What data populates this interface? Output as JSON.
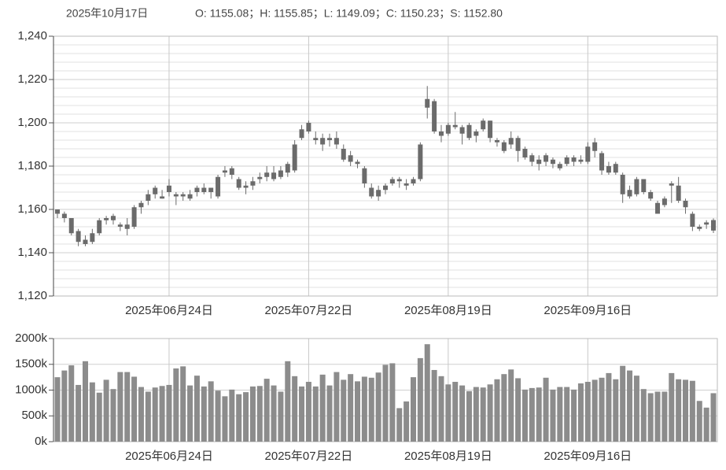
{
  "chart_data": [
    {
      "type": "candlestick",
      "date": "2025年10月17日",
      "info": "O: 1155.08；H: 1155.85；L: 1149.09；C: 1150.23；S: 1152.80",
      "color": "#6b6b6b",
      "categories": [
        null,
        null,
        null,
        null,
        null,
        null,
        null,
        null,
        null,
        null,
        null,
        null,
        null,
        null,
        null,
        null,
        "2025年06月24日",
        null,
        null,
        null,
        null,
        null,
        null,
        null,
        null,
        null,
        null,
        null,
        null,
        null,
        null,
        null,
        null,
        null,
        null,
        null,
        "2025年07月22日",
        null,
        null,
        null,
        null,
        null,
        null,
        null,
        null,
        null,
        null,
        null,
        null,
        null,
        null,
        null,
        null,
        null,
        null,
        null,
        "2025年08月19日",
        null,
        null,
        null,
        null,
        null,
        null,
        null,
        null,
        null,
        null,
        null,
        null,
        null,
        null,
        null,
        null,
        null,
        null,
        null,
        "2025年09月16日",
        null,
        null,
        null,
        null,
        null,
        null,
        null,
        null,
        null,
        null,
        null,
        null,
        null,
        null,
        null,
        null,
        null,
        null
      ],
      "open": [
        1160,
        1158,
        1156,
        1150,
        1144,
        1145,
        1149,
        1155,
        1157,
        1153,
        1151,
        1152,
        1161,
        1164,
        1167,
        1166,
        1168,
        1167,
        1166,
        1165,
        1168,
        1170,
        1170,
        1166,
        1177,
        1179,
        1174,
        1171,
        1171,
        1174,
        1177,
        1174,
        1178,
        1177,
        1178,
        1193,
        1196,
        1193,
        1193,
        1192,
        1193,
        1188,
        1185,
        1182,
        1179,
        1170,
        1166,
        1169,
        1172,
        1174,
        1171,
        1172,
        1174,
        1207,
        1210,
        1196,
        1195,
        1199,
        1198,
        1199,
        1194,
        1197,
        1201,
        1192,
        1191,
        1190,
        1193,
        1188,
        1185,
        1183,
        1182,
        1183,
        1181,
        1181,
        1184,
        1183,
        1182,
        1187,
        1186,
        1180,
        1181,
        1176,
        1166,
        1167,
        1174,
        1168,
        1163,
        1162,
        1172,
        1171,
        1164,
        1158,
        1152,
        1154,
        1155.08
      ],
      "high": [
        1160,
        1159,
        1156,
        1151,
        1148,
        1151,
        1156,
        1157,
        1158,
        1154,
        1156,
        1162,
        1164,
        1169,
        1171,
        1169,
        1174,
        1168,
        1168,
        1169,
        1171,
        1172,
        1170,
        1176,
        1180,
        1180,
        1175,
        1173,
        1175,
        1177,
        1180,
        1180,
        1180,
        1182,
        1192,
        1199,
        1201,
        1196,
        1195,
        1195,
        1196,
        1190,
        1187,
        1183,
        1180,
        1172,
        1171,
        1172,
        1175,
        1175,
        1174,
        1175,
        1191,
        1217,
        1211,
        1199,
        1200,
        1205,
        1199,
        1200,
        1197,
        1202,
        1201,
        1193,
        1192,
        1196,
        1194,
        1189,
        1186,
        1185,
        1186,
        1184,
        1182,
        1185,
        1185,
        1185,
        1191,
        1193,
        1187,
        1182,
        1182,
        1177,
        1171,
        1175,
        1174,
        1169,
        1164,
        1166,
        1173,
        1175,
        1165,
        1159,
        1153,
        1155,
        1155.85
      ],
      "low": [
        1156,
        1154,
        1148,
        1143,
        1143,
        1144,
        1148,
        1153,
        1153,
        1150,
        1148,
        1151,
        1158,
        1162,
        1165,
        1165,
        1166,
        1162,
        1164,
        1164,
        1166,
        1167,
        1165,
        1165,
        1175,
        1174,
        1169,
        1167,
        1169,
        1172,
        1173,
        1173,
        1174,
        1175,
        1177,
        1192,
        1195,
        1190,
        1187,
        1189,
        1188,
        1182,
        1180,
        1179,
        1170,
        1165,
        1164,
        1167,
        1171,
        1170,
        1169,
        1171,
        1173,
        1202,
        1195,
        1191,
        1194,
        1197,
        1190,
        1192,
        1191,
        1196,
        1191,
        1189,
        1186,
        1188,
        1182,
        1183,
        1180,
        1178,
        1180,
        1179,
        1178,
        1180,
        1180,
        1181,
        1181,
        1184,
        1176,
        1176,
        1176,
        1163,
        1165,
        1166,
        1167,
        1164,
        1158,
        1161,
        1163,
        1163,
        1158,
        1150,
        1150,
        1151,
        1149.09
      ],
      "close": [
        1158,
        1156,
        1149,
        1145,
        1146,
        1149,
        1155,
        1156,
        1155,
        1152,
        1153,
        1161,
        1163,
        1167,
        1170,
        1165,
        1171,
        1166,
        1167,
        1167,
        1170,
        1168,
        1168,
        1175,
        1178,
        1176,
        1170,
        1170,
        1173,
        1175,
        1175,
        1177,
        1175,
        1181,
        1190,
        1197,
        1200,
        1192,
        1190,
        1193,
        1190,
        1183,
        1182,
        1181,
        1172,
        1166,
        1169,
        1171,
        1174,
        1173,
        1172,
        1174,
        1190,
        1211,
        1196,
        1194,
        1199,
        1198,
        1195,
        1193,
        1196,
        1201,
        1193,
        1191,
        1187,
        1193,
        1187,
        1184,
        1182,
        1181,
        1185,
        1181,
        1179,
        1184,
        1182,
        1182,
        1189,
        1191,
        1178,
        1177,
        1177,
        1167,
        1169,
        1174,
        1168,
        1165,
        1158,
        1165,
        1171,
        1164,
        1161,
        1152,
        1151,
        1153,
        1150.23
      ],
      "ylim": [
        1120,
        1240
      ],
      "yticks": [
        {
          "value": 1120,
          "label": "1,120"
        },
        {
          "value": 1140,
          "label": "1,140"
        },
        {
          "value": 1160,
          "label": "1,160"
        },
        {
          "value": 1180,
          "label": "1,180"
        },
        {
          "value": 1200,
          "label": "1,200"
        },
        {
          "value": 1220,
          "label": "1,220"
        },
        {
          "value": 1240,
          "label": "1,240"
        }
      ],
      "grid": true
    },
    {
      "type": "bar",
      "color": "#8c8c8c",
      "categories": [
        null,
        null,
        null,
        null,
        null,
        null,
        null,
        null,
        null,
        null,
        null,
        null,
        null,
        null,
        null,
        null,
        "2025年06月24日",
        null,
        null,
        null,
        null,
        null,
        null,
        null,
        null,
        null,
        null,
        null,
        null,
        null,
        null,
        null,
        null,
        null,
        null,
        null,
        "2025年07月22日",
        null,
        null,
        null,
        null,
        null,
        null,
        null,
        null,
        null,
        null,
        null,
        null,
        null,
        null,
        null,
        null,
        null,
        null,
        null,
        "2025年08月19日",
        null,
        null,
        null,
        null,
        null,
        null,
        null,
        null,
        null,
        null,
        null,
        null,
        null,
        null,
        null,
        null,
        null,
        null,
        null,
        "2025年09月16日",
        null,
        null,
        null,
        null,
        null,
        null,
        null,
        null,
        null,
        null,
        null,
        null,
        null,
        null,
        null,
        null,
        null,
        null
      ],
      "values": [
        1250000,
        1380000,
        1480000,
        1100000,
        1560000,
        1150000,
        950000,
        1200000,
        1020000,
        1350000,
        1350000,
        1260000,
        1060000,
        970000,
        1050000,
        1080000,
        1100000,
        1420000,
        1460000,
        1090000,
        1280000,
        1070000,
        1170000,
        990000,
        880000,
        1010000,
        920000,
        960000,
        1070000,
        1080000,
        1220000,
        1090000,
        970000,
        1560000,
        1270000,
        1070000,
        1160000,
        1070000,
        1300000,
        1090000,
        1350000,
        1200000,
        1310000,
        1170000,
        1260000,
        1240000,
        1340000,
        1490000,
        1520000,
        650000,
        780000,
        1250000,
        1620000,
        1890000,
        1390000,
        1270000,
        1110000,
        1160000,
        1090000,
        980000,
        1060000,
        1050000,
        1110000,
        1210000,
        1310000,
        1400000,
        1230000,
        1010000,
        1040000,
        1050000,
        1240000,
        1010000,
        1060000,
        1060000,
        1010000,
        1130000,
        1160000,
        1200000,
        1240000,
        1330000,
        1210000,
        1470000,
        1380000,
        1280000,
        1020000,
        940000,
        970000,
        970000,
        1330000,
        1210000,
        1200000,
        1180000,
        790000,
        660000,
        940000
      ],
      "ylim": [
        0,
        2000000
      ],
      "yticks": [
        {
          "value": 0,
          "label": "0k"
        },
        {
          "value": 500000,
          "label": "500k"
        },
        {
          "value": 1000000,
          "label": "1000k"
        },
        {
          "value": 1500000,
          "label": "1500k"
        },
        {
          "value": 2000000,
          "label": "2000k"
        }
      ],
      "grid": true
    }
  ]
}
